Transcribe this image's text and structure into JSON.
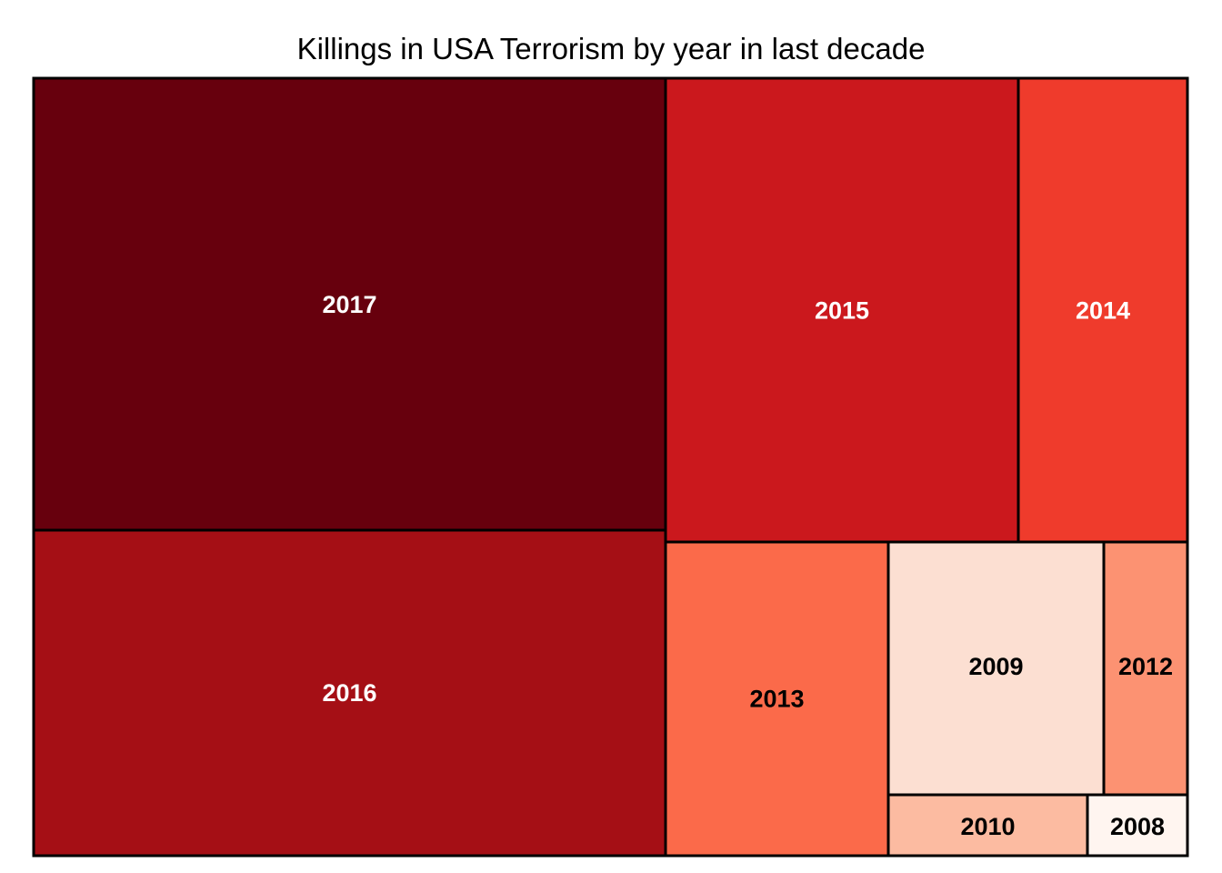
{
  "chart_data": {
    "type": "treemap",
    "title": "Killings in USA Terrorism by year in last decade",
    "tiles": [
      {
        "label": "2017",
        "value": 95,
        "color": "#67000d",
        "text_color": "#ffffff"
      },
      {
        "label": "2016",
        "value": 82,
        "color": "#a50f15",
        "text_color": "#ffffff"
      },
      {
        "label": "2015",
        "value": 54,
        "color": "#cb181d",
        "text_color": "#ffffff"
      },
      {
        "label": "2014",
        "value": 26,
        "color": "#ef3b2c",
        "text_color": "#ffffff"
      },
      {
        "label": "2013",
        "value": 24,
        "color": "#fb6a4a",
        "text_color": "#000000"
      },
      {
        "label": "2009",
        "value": 18,
        "color": "#fcdfd2",
        "text_color": "#000000"
      },
      {
        "label": "2012",
        "value": 7,
        "color": "#fc9272",
        "text_color": "#000000"
      },
      {
        "label": "2010",
        "value": 4,
        "color": "#fcbba1",
        "text_color": "#000000"
      },
      {
        "label": "2008",
        "value": 2,
        "color": "#fff5f0",
        "text_color": "#000000"
      }
    ]
  }
}
